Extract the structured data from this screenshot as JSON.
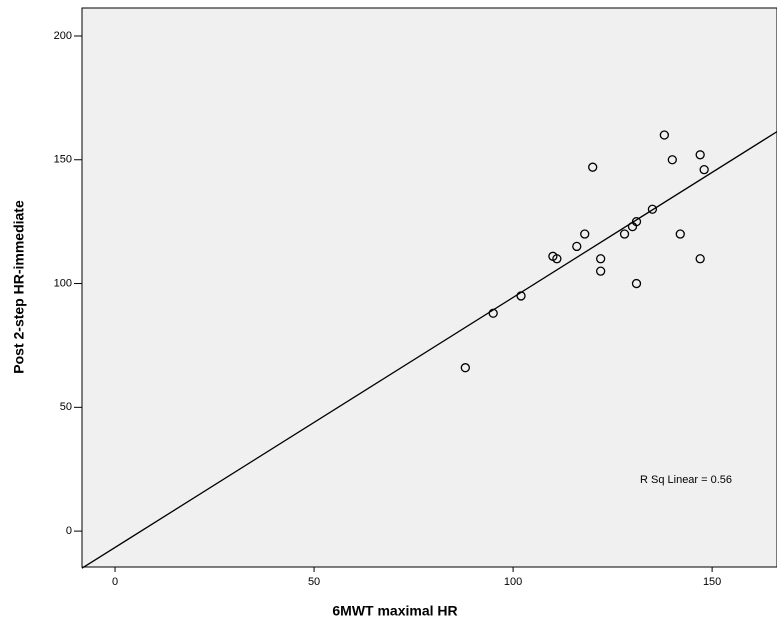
{
  "chart_data": {
    "type": "scatter",
    "x_label": "6MWT maximal HR",
    "y_label": "Post 2-step HR-immediate",
    "annotation": "R Sq Linear = 0.56",
    "x": [
      88,
      95,
      102,
      110,
      111,
      116,
      118,
      120,
      122,
      122,
      128,
      130,
      131,
      131,
      135,
      138,
      140,
      142,
      147,
      147,
      148
    ],
    "values": [
      66,
      88,
      95,
      111,
      110,
      115,
      120,
      147,
      110,
      105,
      120,
      123,
      125,
      100,
      130,
      160,
      150,
      120,
      152,
      110,
      146
    ],
    "trendline": {
      "intercept": -6.6,
      "slope": 1.01
    },
    "xlim": [
      -8.3,
      166.3
    ],
    "ylim": [
      -14.5,
      211.3
    ],
    "xticks": [
      0,
      50,
      100,
      150
    ],
    "yticks": [
      0,
      50,
      100,
      150,
      200
    ],
    "plot_background": "#f0f0f0",
    "marker_color": "#000000"
  }
}
